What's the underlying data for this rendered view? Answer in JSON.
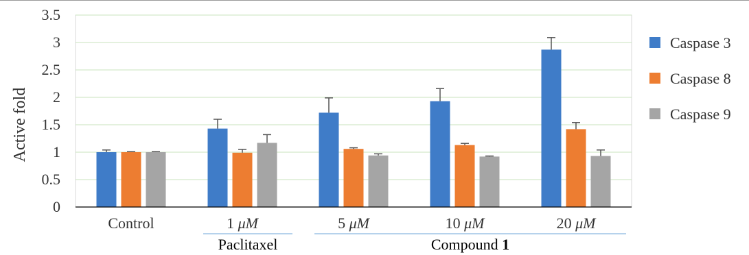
{
  "chart_data": {
    "type": "bar",
    "ylabel": "Active fold",
    "xlabel": "",
    "ylim": [
      0,
      3.5
    ],
    "yticks": [
      "0",
      "0.5",
      "1",
      "1.5",
      "2",
      "2.5",
      "3",
      "3.5"
    ],
    "grid": true,
    "legend_position": "right",
    "categories": [
      {
        "prefix": "Control",
        "unit": ""
      },
      {
        "prefix": "1 ",
        "unit": "μM"
      },
      {
        "prefix": "5 ",
        "unit": "μM"
      },
      {
        "prefix": "10 ",
        "unit": "μM"
      },
      {
        "prefix": "20 ",
        "unit": "μM"
      }
    ],
    "series": [
      {
        "name": "Caspase 3",
        "color": "#3F7CC8",
        "values": [
          1.0,
          1.43,
          1.72,
          1.93,
          2.87
        ],
        "errors": [
          0.04,
          0.17,
          0.27,
          0.23,
          0.22
        ]
      },
      {
        "name": "Caspase 8",
        "color": "#ED7D31",
        "values": [
          1.0,
          0.99,
          1.06,
          1.13,
          1.42
        ],
        "errors": [
          0.01,
          0.06,
          0.02,
          0.03,
          0.12
        ]
      },
      {
        "name": "Caspase 9",
        "color": "#A5A5A5",
        "values": [
          1.0,
          1.17,
          0.94,
          0.92,
          0.93
        ],
        "errors": [
          0.01,
          0.15,
          0.03,
          0.01,
          0.11
        ]
      }
    ],
    "groups": [
      {
        "label": "Paclitaxel",
        "bold": "",
        "categories": [
          1
        ]
      },
      {
        "label": "Compound ",
        "bold": "1",
        "categories": [
          2,
          3,
          4
        ]
      }
    ],
    "colors": {
      "grid": "#C9E3BE",
      "axis": "#000000",
      "error_bar": "#555555",
      "group_line": "#9DC3E6",
      "plot_border": "#D9D9D9"
    }
  }
}
